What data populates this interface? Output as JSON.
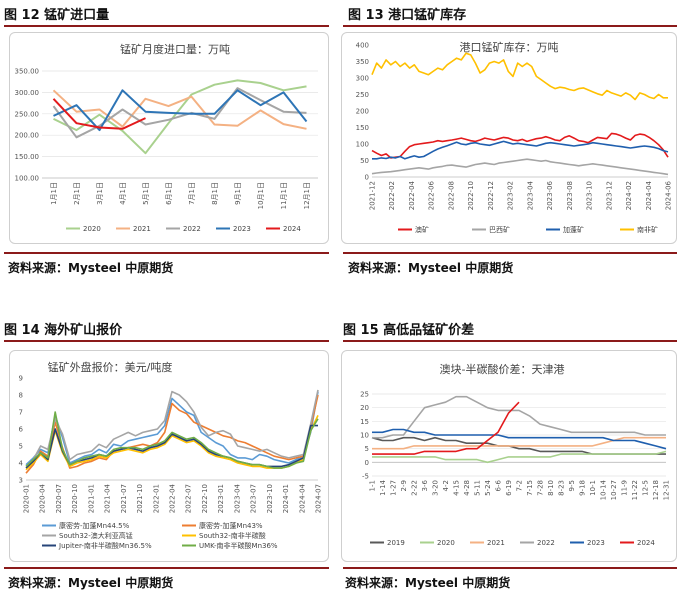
{
  "figures": [
    {
      "title": "图 12  锰矿进口量",
      "source": "资料来源：Mysteel  中原期货"
    },
    {
      "title": "图 13  港口锰矿库存",
      "source": "资料来源：Mysteel  中原期货"
    },
    {
      "title": "图 14  海外矿山报价",
      "source": "资料来源：Mysteel  中原期货"
    },
    {
      "title": "图 15  高低品锰矿价差",
      "source": "资料来源：Mysteel  中原期货"
    }
  ],
  "chart_data": [
    {
      "type": "line",
      "title": "锰矿月度进口量：万吨",
      "categories": [
        "1月1日",
        "2月1日",
        "3月1日",
        "4月1日",
        "5月1日",
        "6月1日",
        "7月1日",
        "8月1日",
        "9月1日",
        "10月1日",
        "11月1日",
        "12月1日"
      ],
      "ylim": [
        100,
        350
      ],
      "yticks": [
        "100.00",
        "150.00",
        "200.00",
        "250.00",
        "300.00",
        "350.00"
      ],
      "series": [
        {
          "name": "2020",
          "color": "#A9D18E",
          "values": [
            238,
            212,
            248,
            210,
            158,
            228,
            295,
            318,
            328,
            322,
            305,
            314
          ]
        },
        {
          "name": "2021",
          "color": "#F4B183",
          "values": [
            305,
            255,
            260,
            220,
            285,
            268,
            290,
            225,
            222,
            258,
            226,
            215
          ]
        },
        {
          "name": "2022",
          "color": "#A5A5A5",
          "values": [
            268,
            195,
            222,
            260,
            225,
            236,
            252,
            238,
            310,
            282,
            255,
            252
          ]
        },
        {
          "name": "2023",
          "color": "#2E75B6",
          "values": [
            245,
            270,
            212,
            305,
            255,
            252,
            250,
            250,
            305,
            270,
            300,
            232
          ]
        },
        {
          "name": "2024",
          "color": "#E31A1C",
          "values": [
            285,
            228,
            218,
            215,
            240,
            null,
            null,
            null,
            null,
            null,
            null,
            null
          ]
        }
      ]
    },
    {
      "type": "line",
      "title": "港口锰矿库存：万吨",
      "x_labels": [
        "2021-12",
        "2022-02",
        "2022-04",
        "2022-06",
        "2022-08",
        "2022-10",
        "2022-12",
        "2023-02",
        "2023-04",
        "2023-06",
        "2023-08",
        "2023-10",
        "2023-12",
        "2024-02",
        "2024-04",
        "2024-06"
      ],
      "ylim": [
        0,
        400
      ],
      "yticks": [
        "0",
        "50",
        "100",
        "150",
        "200",
        "250",
        "300",
        "350",
        "400"
      ],
      "series": [
        {
          "name": "澳矿",
          "color": "#E31A1C",
          "values": [
            80,
            72,
            65,
            70,
            58,
            60,
            62,
            78,
            92,
            98,
            100,
            102,
            104,
            106,
            110,
            108,
            110,
            112,
            115,
            118,
            114,
            110,
            108,
            112,
            118,
            115,
            112,
            116,
            120,
            118,
            112,
            110,
            114,
            108,
            112,
            116,
            118,
            122,
            118,
            112,
            110,
            120,
            125,
            118,
            110,
            108,
            104,
            112,
            120,
            118,
            116,
            132,
            130,
            125,
            118,
            112,
            126,
            130,
            128,
            120,
            110,
            98,
            82,
            60
          ]
        },
        {
          "name": "巴西矿",
          "color": "#A5A5A5",
          "values": [
            10,
            12,
            14,
            15,
            16,
            18,
            20,
            22,
            24,
            26,
            28,
            26,
            24,
            28,
            30,
            32,
            35,
            36,
            34,
            32,
            30,
            34,
            38,
            40,
            42,
            40,
            38,
            42,
            44,
            46,
            48,
            50,
            52,
            54,
            52,
            50,
            48,
            50,
            46,
            44,
            42,
            40,
            38,
            36,
            34,
            36,
            38,
            40,
            38,
            36,
            34,
            32,
            30,
            28,
            26,
            24,
            22,
            20,
            18,
            16,
            14,
            12,
            10,
            8
          ]
        },
        {
          "name": "加蓬矿",
          "color": "#1F5FAE",
          "values": [
            55,
            55,
            58,
            56,
            60,
            58,
            62,
            55,
            60,
            64,
            60,
            62,
            70,
            78,
            85,
            90,
            95,
            100,
            105,
            100,
            98,
            102,
            104,
            100,
            98,
            96,
            100,
            104,
            108,
            104,
            100,
            102,
            100,
            98,
            96,
            94,
            98,
            102,
            104,
            102,
            100,
            98,
            96,
            94,
            96,
            98,
            100,
            104,
            102,
            100,
            98,
            96,
            94,
            92,
            90,
            88,
            90,
            92,
            94,
            92,
            90,
            86,
            80,
            76
          ]
        },
        {
          "name": "南非矿",
          "color": "#FFC000",
          "values": [
            310,
            345,
            330,
            355,
            340,
            350,
            335,
            345,
            330,
            340,
            320,
            315,
            310,
            320,
            330,
            325,
            340,
            350,
            360,
            355,
            375,
            370,
            345,
            315,
            325,
            345,
            350,
            345,
            355,
            320,
            305,
            345,
            335,
            345,
            335,
            305,
            295,
            285,
            275,
            268,
            272,
            270,
            265,
            262,
            268,
            270,
            264,
            258,
            252,
            248,
            262,
            255,
            250,
            245,
            255,
            248,
            235,
            255,
            250,
            242,
            238,
            250,
            240,
            240
          ]
        }
      ]
    },
    {
      "type": "line",
      "title": "锰矿外盘报价：美元/吨度",
      "x_labels": [
        "2020-01",
        "2020-04",
        "2020-07",
        "2020-10",
        "2021-01",
        "2021-04",
        "2021-07",
        "2021-10",
        "2022-01",
        "2022-04",
        "2022-07",
        "2022-10",
        "2023-01",
        "2023-04",
        "2023-07",
        "2023-10",
        "2024-01",
        "2024-04",
        "2024-07"
      ],
      "ylim": [
        3,
        9
      ],
      "yticks": [
        "3",
        "4",
        "5",
        "6",
        "7",
        "8",
        "9"
      ],
      "series": [
        {
          "name": "康密劳-加蓬Mn44.5%",
          "color": "#5B9BD5",
          "values": [
            3.9,
            4.3,
            4.8,
            4.6,
            6.8,
            5.5,
            4.0,
            4.2,
            4.4,
            4.5,
            4.8,
            4.6,
            5.1,
            5.0,
            5.3,
            5.4,
            5.5,
            5.6,
            5.7,
            6.2,
            7.8,
            7.4,
            7.0,
            6.8,
            5.8,
            5.5,
            5.2,
            5.0,
            4.5,
            4.3,
            4.3,
            4.2,
            4.5,
            4.4,
            4.2,
            4.1,
            4.0,
            4.2,
            4.4,
            5.8,
            8.2
          ]
        },
        {
          "name": "康密劳-加蓬Mn43%",
          "color": "#ED7D31",
          "values": [
            3.4,
            3.9,
            4.7,
            4.4,
            6.4,
            4.9,
            3.7,
            3.8,
            4.0,
            4.1,
            4.3,
            4.2,
            4.7,
            4.8,
            4.9,
            5.0,
            5.1,
            5.0,
            5.2,
            5.8,
            7.5,
            7.1,
            6.9,
            6.4,
            6.2,
            6.0,
            5.8,
            5.6,
            5.5,
            5.3,
            5.2,
            5.0,
            4.8,
            4.6,
            4.4,
            4.3,
            4.2,
            4.3,
            4.4,
            6.1,
            8.0
          ]
        },
        {
          "name": "South32-澳大利亚高锰",
          "color": "#A5A5A5",
          "values": [
            3.8,
            4.2,
            5.0,
            4.8,
            6.6,
            5.7,
            4.2,
            4.5,
            4.6,
            4.7,
            5.1,
            4.9,
            5.4,
            5.6,
            5.8,
            5.6,
            5.8,
            5.9,
            6.0,
            6.5,
            8.2,
            8.0,
            7.6,
            7.0,
            6.1,
            5.6,
            5.8,
            5.9,
            5.7,
            5.0,
            4.9,
            4.8,
            4.7,
            4.8,
            4.6,
            4.4,
            4.3,
            4.4,
            4.5,
            6.3,
            8.3
          ]
        },
        {
          "name": "South32-南非半碳酸",
          "color": "#FFC000",
          "values": [
            3.6,
            4.0,
            4.5,
            4.1,
            5.9,
            4.6,
            3.8,
            4.0,
            4.1,
            4.2,
            4.4,
            4.3,
            4.6,
            4.7,
            4.8,
            4.7,
            4.6,
            4.8,
            4.9,
            5.1,
            5.6,
            5.4,
            5.2,
            5.3,
            5.0,
            4.6,
            4.4,
            4.3,
            4.2,
            4.0,
            3.9,
            3.8,
            3.8,
            3.7,
            3.7,
            3.7,
            3.8,
            4.0,
            4.2,
            5.9,
            6.8
          ]
        },
        {
          "name": "Jupiter-南非半碳酸Mn36.5%",
          "color": "#264478",
          "values": [
            3.7,
            4.1,
            4.6,
            4.2,
            6.0,
            4.7,
            3.9,
            4.1,
            4.2,
            4.3,
            4.5,
            4.4,
            4.7,
            4.8,
            4.9,
            4.8,
            4.7,
            4.9,
            5.0,
            5.2,
            5.7,
            5.5,
            5.3,
            5.4,
            5.1,
            4.7,
            4.5,
            4.4,
            4.3,
            4.1,
            4.0,
            3.9,
            3.9,
            3.8,
            3.8,
            3.8,
            3.9,
            4.1,
            4.3,
            6.2,
            6.2
          ]
        },
        {
          "name": "UMK-南非半碳酸Mn36%",
          "color": "#70AD47",
          "values": [
            3.8,
            4.2,
            4.6,
            4.3,
            7.0,
            4.8,
            3.9,
            4.1,
            4.3,
            4.4,
            4.5,
            4.4,
            4.8,
            4.9,
            4.9,
            4.9,
            4.8,
            5.0,
            5.1,
            5.3,
            5.8,
            5.6,
            5.4,
            5.5,
            5.2,
            4.8,
            4.6,
            4.4,
            4.3,
            4.1,
            4.0,
            3.9,
            3.9,
            3.8,
            3.7,
            3.7,
            3.8,
            4.0,
            4.1,
            5.9,
            6.6
          ]
        }
      ]
    },
    {
      "type": "line",
      "title": "澳块-半碳酸价差：天津港",
      "x_labels": [
        "1-1",
        "1-14",
        "1-27",
        "2-9",
        "2-22",
        "3-6",
        "3-20",
        "4-2",
        "4-15",
        "4-28",
        "5-11",
        "5-24",
        "6-6",
        "6-19",
        "7-2",
        "7-15",
        "7-28",
        "8-10",
        "8-23",
        "9-5",
        "9-18",
        "10-1",
        "10-14",
        "10-27",
        "11-9",
        "11-22",
        "12-5",
        "12-18",
        "12-31"
      ],
      "ylim": [
        -5,
        25
      ],
      "yticks": [
        "-5",
        "0",
        "5",
        "10",
        "15",
        "20",
        "25"
      ],
      "series": [
        {
          "name": "2019",
          "color": "#595959",
          "values": [
            9,
            8,
            8,
            9,
            9,
            8,
            9,
            8,
            8,
            7,
            7,
            7,
            6,
            6,
            5,
            5,
            4,
            4,
            4,
            4,
            4,
            3,
            3,
            3,
            3,
            3,
            3,
            3,
            3
          ]
        },
        {
          "name": "2020",
          "color": "#A9D18E",
          "values": [
            2,
            2,
            2,
            2,
            2,
            2,
            2,
            1,
            1,
            1,
            1,
            0,
            1,
            2,
            2,
            2,
            2,
            2,
            3,
            3,
            3,
            3,
            3,
            3,
            3,
            3,
            3,
            3,
            4
          ]
        },
        {
          "name": "2021",
          "color": "#F4B183",
          "values": [
            5,
            5,
            5,
            5,
            6,
            6,
            6,
            6,
            6,
            6,
            6,
            6,
            6,
            6,
            6,
            6,
            6,
            6,
            6,
            6,
            6,
            6,
            7,
            8,
            9,
            9,
            9,
            9,
            9
          ]
        },
        {
          "name": "2022",
          "color": "#A5A5A5",
          "values": [
            9,
            9,
            10,
            10,
            15,
            20,
            21,
            22,
            24,
            24,
            22,
            20,
            19,
            19,
            19,
            17,
            14,
            13,
            12,
            11,
            11,
            11,
            11,
            11,
            11,
            11,
            10,
            10,
            10
          ]
        },
        {
          "name": "2023",
          "color": "#1F5FAE",
          "values": [
            11,
            11,
            12,
            12,
            11,
            11,
            10,
            10,
            10,
            10,
            10,
            10,
            10,
            9,
            9,
            9,
            9,
            9,
            9,
            9,
            9,
            9,
            9,
            8,
            8,
            8,
            7,
            6,
            5
          ]
        },
        {
          "name": "2024",
          "color": "#E31A1C",
          "values": [
            3,
            3,
            3,
            3,
            3,
            4,
            4,
            4,
            4,
            5,
            5,
            8,
            11,
            18,
            22,
            null,
            null,
            null,
            null,
            null,
            null,
            null,
            null,
            null,
            null,
            null,
            null,
            null,
            null
          ]
        }
      ]
    }
  ]
}
